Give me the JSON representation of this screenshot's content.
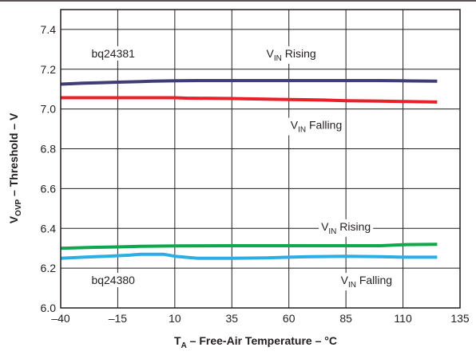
{
  "chart_data": {
    "type": "line",
    "xlabel": {
      "main": "T",
      "sub": "A",
      "rest": " – Free-Air Temperature – °C"
    },
    "ylabel": {
      "main": "V",
      "sub": "OVP",
      "rest": " – Threshold – V"
    },
    "xlim": [
      -40,
      135
    ],
    "ylim": [
      6.0,
      7.5
    ],
    "grid": true,
    "x_ticks": [
      {
        "value": -40,
        "label": "–40"
      },
      {
        "value": -15,
        "label": "–15"
      },
      {
        "value": 10,
        "label": "10"
      },
      {
        "value": 35,
        "label": "35"
      },
      {
        "value": 60,
        "label": "60"
      },
      {
        "value": 85,
        "label": "85"
      },
      {
        "value": 110,
        "label": "110"
      },
      {
        "value": 135,
        "label": "135"
      }
    ],
    "y_ticks": [
      {
        "value": 6.0,
        "label": "6.0"
      },
      {
        "value": 6.2,
        "label": "6.2"
      },
      {
        "value": 6.4,
        "label": "6.4"
      },
      {
        "value": 6.6,
        "label": "6.6"
      },
      {
        "value": 6.8,
        "label": "6.8"
      },
      {
        "value": 7.0,
        "label": "7.0"
      },
      {
        "value": 7.2,
        "label": "7.2"
      },
      {
        "value": 7.4,
        "label": "7.4"
      }
    ],
    "series": [
      {
        "color": "#3f3d74",
        "x": [
          -40,
          -30,
          -15,
          -5,
          0,
          10,
          20,
          35,
          60,
          85,
          100,
          110,
          125
        ],
        "y": [
          7.125,
          7.13,
          7.135,
          7.138,
          7.14,
          7.142,
          7.143,
          7.143,
          7.143,
          7.143,
          7.143,
          7.142,
          7.14
        ]
      },
      {
        "color": "#e8202a",
        "x": [
          -40,
          -15,
          10,
          15,
          35,
          50,
          60,
          75,
          85,
          100,
          110,
          125
        ],
        "y": [
          7.057,
          7.057,
          7.057,
          7.055,
          7.053,
          7.05,
          7.048,
          7.045,
          7.042,
          7.04,
          7.038,
          7.035
        ]
      },
      {
        "color": "#10a84f",
        "x": [
          -40,
          -25,
          -15,
          -5,
          10,
          35,
          60,
          85,
          100,
          110,
          125
        ],
        "y": [
          6.3,
          6.305,
          6.307,
          6.31,
          6.312,
          6.313,
          6.313,
          6.313,
          6.313,
          6.318,
          6.32
        ]
      },
      {
        "color": "#2aaee4",
        "x": [
          -40,
          -30,
          -20,
          -10,
          -5,
          0,
          5,
          10,
          20,
          35,
          50,
          60,
          70,
          85,
          100,
          110,
          125
        ],
        "y": [
          6.25,
          6.255,
          6.26,
          6.265,
          6.27,
          6.27,
          6.27,
          6.26,
          6.25,
          6.25,
          6.252,
          6.255,
          6.258,
          6.26,
          6.258,
          6.255,
          6.255
        ]
      }
    ],
    "annotations": [
      {
        "id": "bq24381",
        "text": "bq24381",
        "x": -17,
        "y": 7.28
      },
      {
        "id": "vin-rising-top",
        "text": "V",
        "sub": "IN",
        "rest": " Rising",
        "x": 61,
        "y": 7.28
      },
      {
        "id": "vin-falling-top",
        "text": "V",
        "sub": "IN",
        "rest": " Falling",
        "x": 72,
        "y": 6.92
      },
      {
        "id": "vin-rising-bottom",
        "text": "V",
        "sub": "IN",
        "rest": " Rising",
        "x": 85,
        "y": 6.41
      },
      {
        "id": "bq24380",
        "text": "bq24380",
        "x": -17,
        "y": 6.14
      },
      {
        "id": "vin-falling-bottom",
        "text": "V",
        "sub": "IN",
        "rest": " Falling",
        "x": 94,
        "y": 6.14
      }
    ]
  }
}
